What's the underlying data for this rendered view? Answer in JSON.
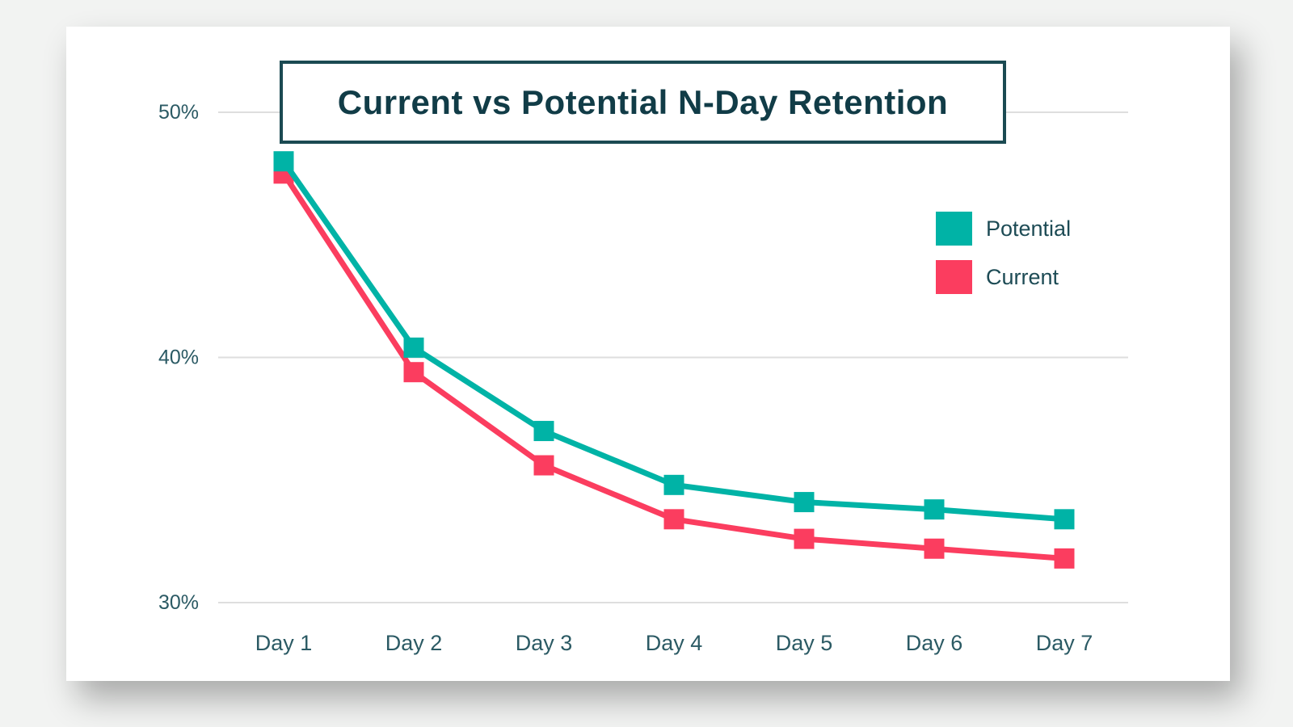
{
  "chart_data": {
    "type": "line",
    "title": "Current vs Potential N-Day Retention",
    "categories": [
      "Day 1",
      "Day 2",
      "Day 3",
      "Day 4",
      "Day 5",
      "Day 6",
      "Day 7"
    ],
    "series": [
      {
        "name": "Potential",
        "color": "#00b3a6",
        "values": [
          48.0,
          40.4,
          37.0,
          34.8,
          34.1,
          33.8,
          33.4
        ]
      },
      {
        "name": "Current",
        "color": "#fb3d5f",
        "values": [
          47.5,
          39.4,
          35.6,
          33.4,
          32.6,
          32.2,
          31.8
        ]
      }
    ],
    "y_ticks": [
      {
        "label": "50%",
        "value": 50
      },
      {
        "label": "40%",
        "value": 40
      },
      {
        "label": "30%",
        "value": 30
      }
    ],
    "ylim": [
      29.5,
      51.2
    ],
    "xlabel": "",
    "ylabel": "",
    "grid": "horizontal-only",
    "legend_position": "upper-right-inside",
    "marker": "square"
  },
  "colors": {
    "page_background": "#f2f3f2",
    "card_background": "#ffffff",
    "title_text": "#113c47",
    "title_border": "#1b4a52",
    "axis_text": "#2b5a64",
    "legend_text": "#1d4b55",
    "gridline": "#dedede"
  }
}
